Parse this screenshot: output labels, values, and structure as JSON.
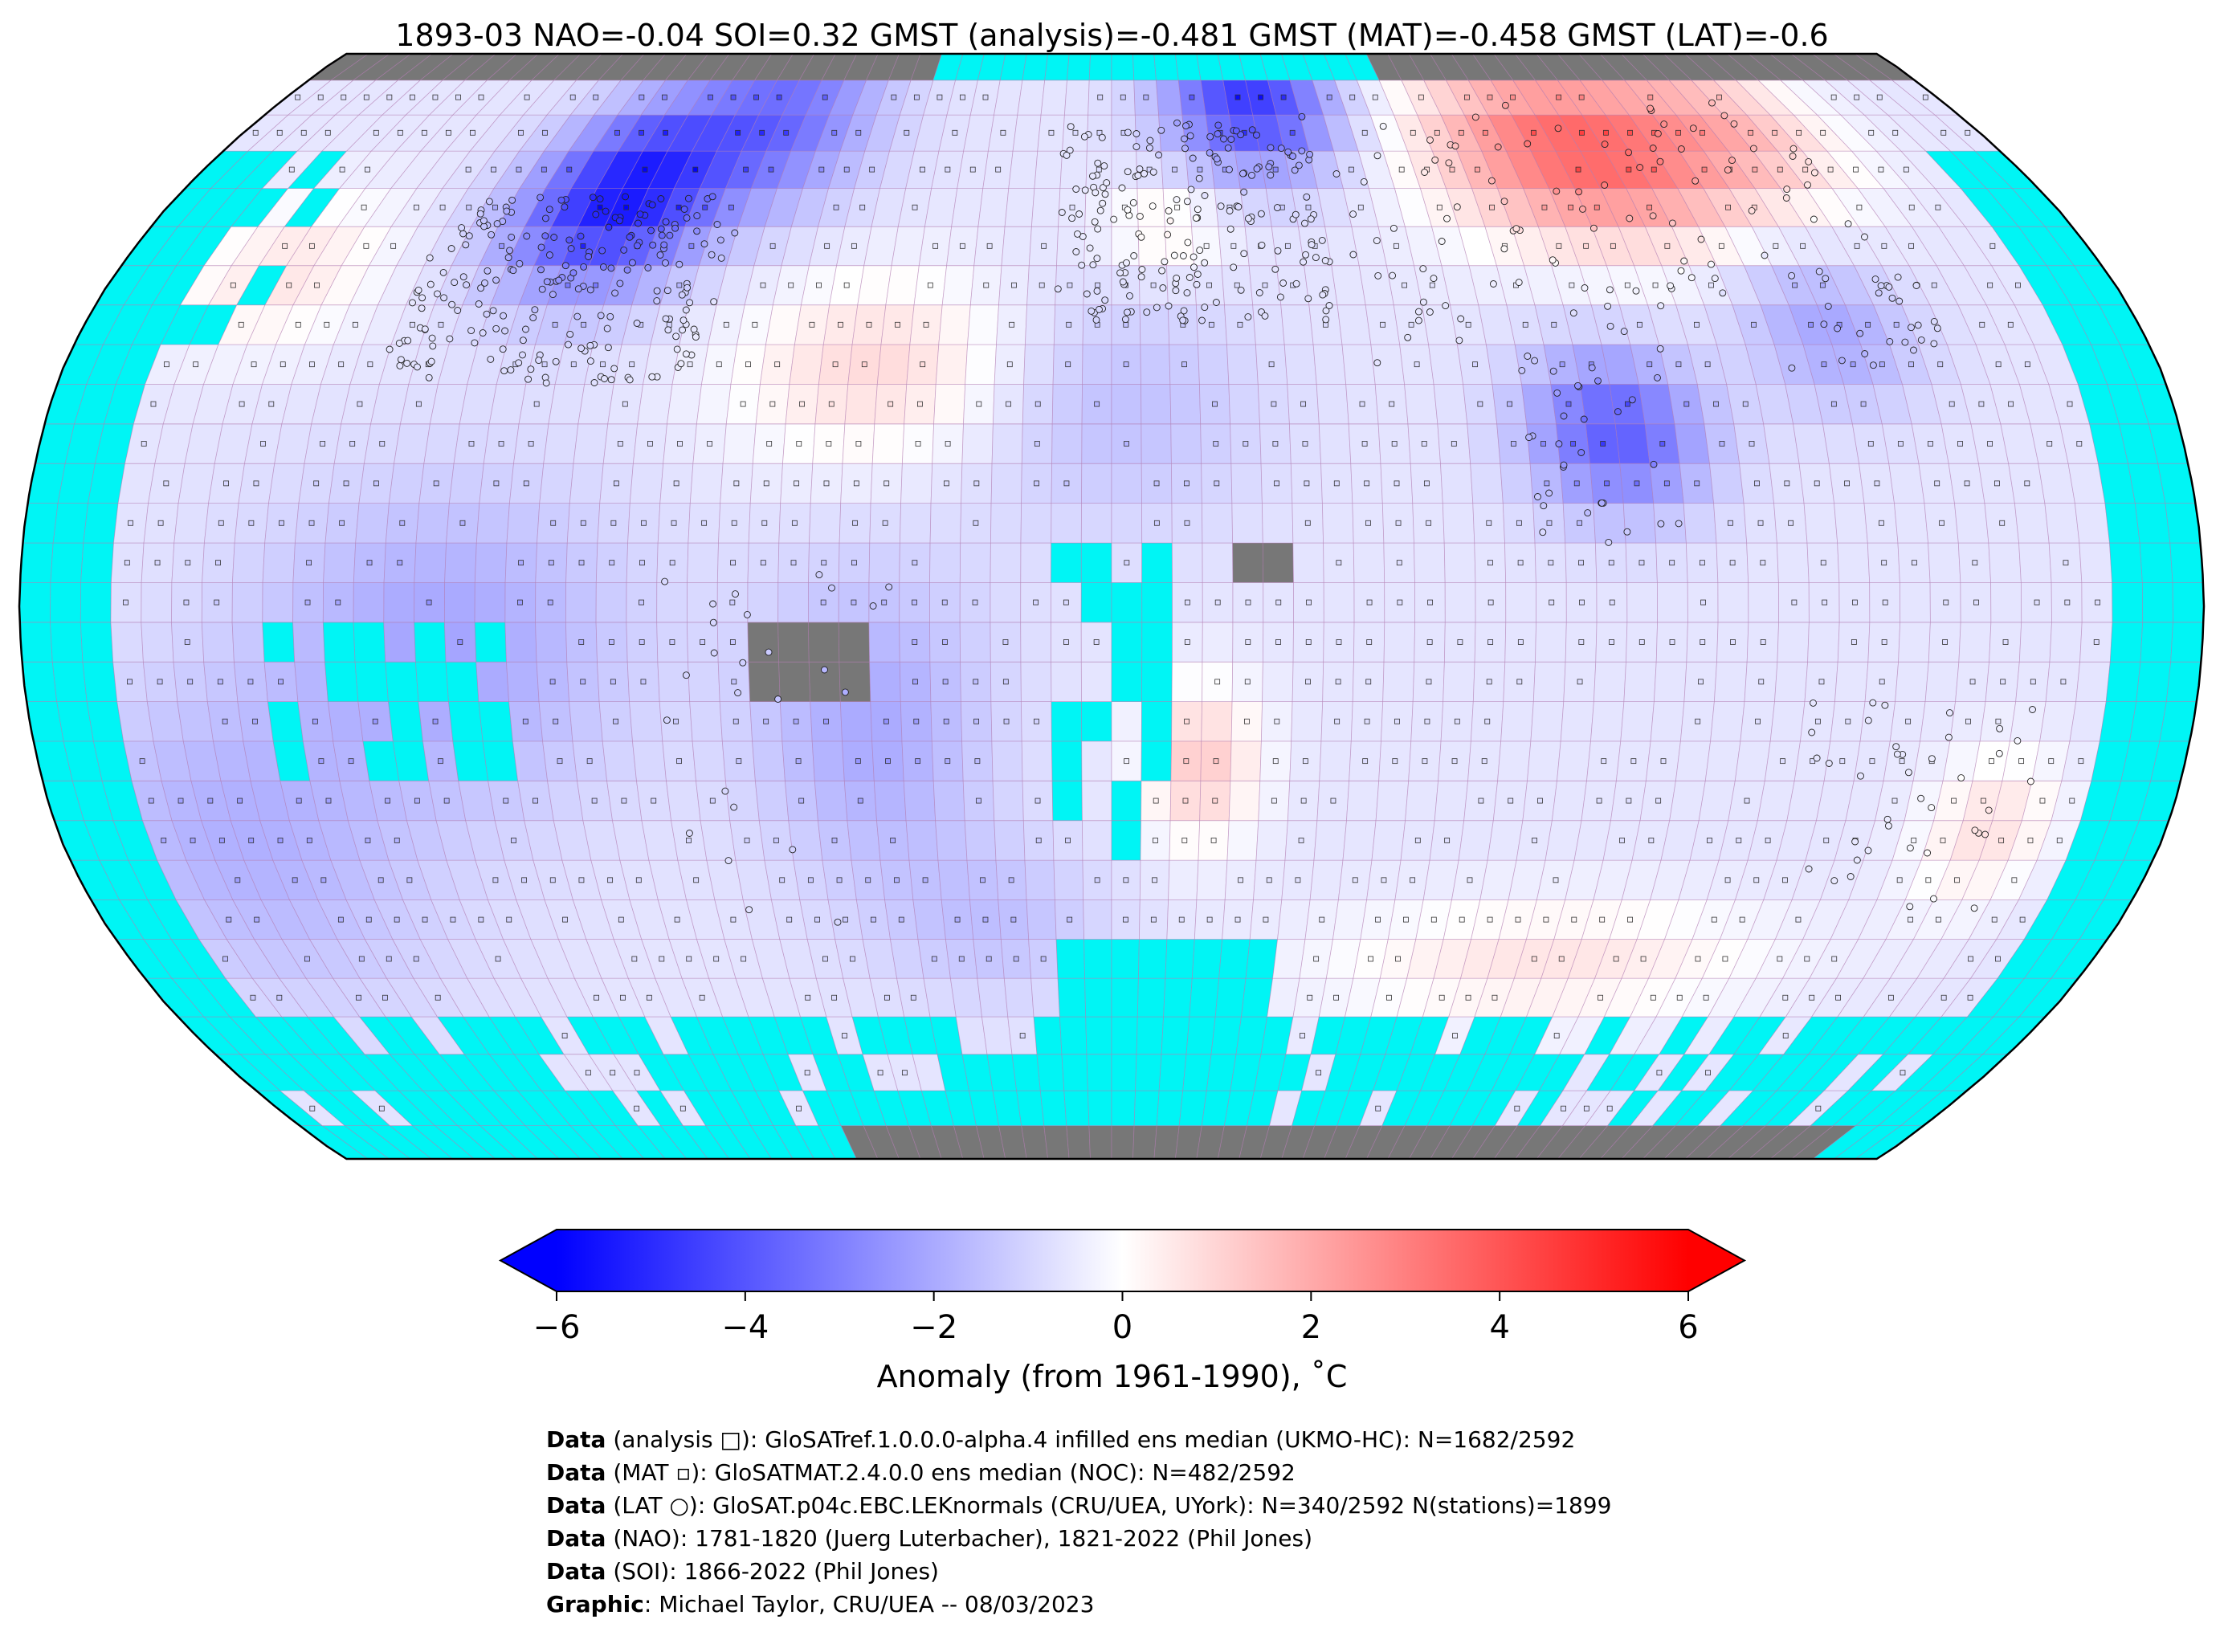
{
  "title": "1893-03 NAO=-0.04 SOI=0.32 GMST (analysis)=-0.481 GMST (MAT)=-0.458 GMST (LAT)=-0.6",
  "colors": {
    "ocean_no_data": "#00f5f5",
    "land_no_data": "#777777",
    "grid_line": "#b07ab0",
    "coastline": "#111111",
    "cold_max": "#0000ff",
    "neutral": "#ffffff",
    "warm_max": "#ff0000"
  },
  "map": {
    "projection": "Robinson",
    "grid_resolution_deg": 5,
    "anomaly_regions_degC": [
      {
        "name": "North America cold core",
        "value": -4.5
      },
      {
        "name": "Northern Europe / Scandinavia",
        "value": -4.0
      },
      {
        "name": "Siberia warm core",
        "value": 4.0
      },
      {
        "name": "India / Bay of Bengal",
        "value": -3.0
      },
      {
        "name": "North Atlantic subtropics",
        "value": 1.5
      },
      {
        "name": "Southwest Africa",
        "value": 1.8
      },
      {
        "name": "Southern Indian Ocean",
        "value": 1.0
      },
      {
        "name": "Eastern Australia",
        "value": 1.2
      }
    ]
  },
  "chart_data": {
    "type": "heatmap",
    "colorbar": {
      "min": -6,
      "max": 6,
      "extend": "both",
      "ticks": [
        "−6",
        "−4",
        "−2",
        "0",
        "2",
        "4",
        "6"
      ],
      "tick_values": [
        -6,
        -4,
        -2,
        0,
        2,
        4,
        6
      ],
      "label": "Anomaly (from 1961-1990), ˚C",
      "colormap": "bwr"
    }
  },
  "credits": [
    {
      "bold": "Data",
      "text": " (analysis □): GloSATref.1.0.0.0-alpha.4 infilled ens median (UKMO-HC): N=1682/2592"
    },
    {
      "bold": "Data",
      "text": " (MAT ▫): GloSATMAT.2.4.0.0 ens median (NOC): N=482/2592"
    },
    {
      "bold": "Data",
      "text": " (LAT ○): GloSAT.p04c.EBC.LEKnormals (CRU/UEA, UYork): N=340/2592 N(stations)=1899"
    },
    {
      "bold": "Data",
      "text": " (NAO): 1781-1820 (Juerg Luterbacher), 1821-2022 (Phil Jones)"
    },
    {
      "bold": "Data",
      "text": " (SOI): 1866-2022 (Phil Jones)"
    },
    {
      "bold": "Graphic",
      "text": ": Michael Taylor, CRU/UEA -- 08/03/2023"
    }
  ]
}
